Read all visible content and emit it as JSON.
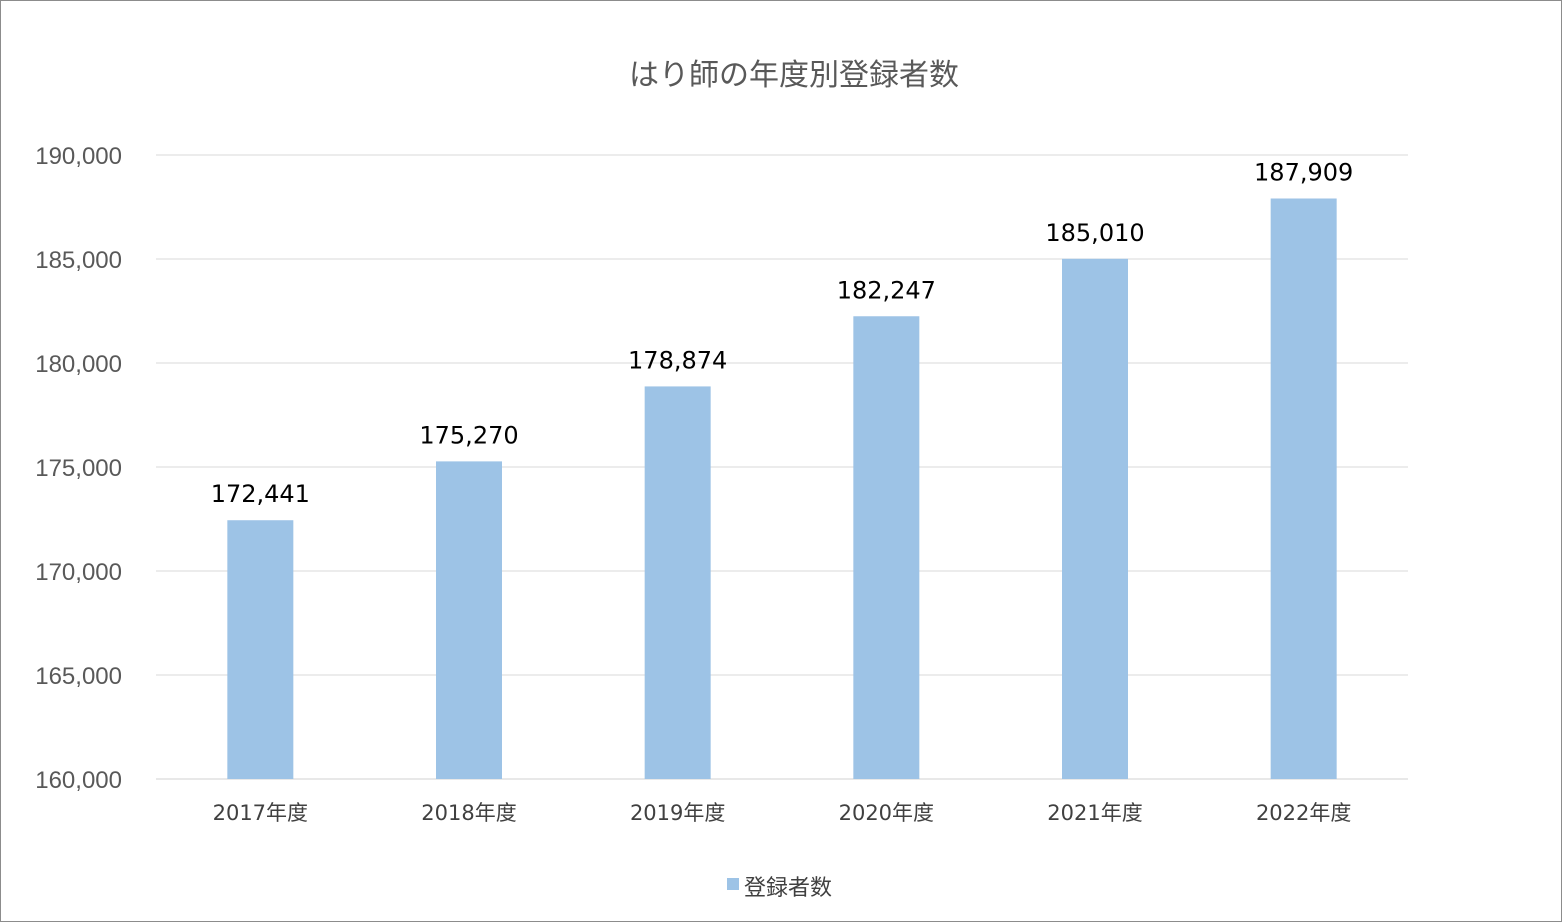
{
  "chart_data": {
    "type": "bar",
    "title": "はり師の年度別登録者数",
    "categories": [
      "2017年度",
      "2018年度",
      "2019年度",
      "2020年度",
      "2021年度",
      "2022年度"
    ],
    "series": [
      {
        "name": "登録者数",
        "values": [
          172441,
          175270,
          178874,
          182247,
          185010,
          187909
        ],
        "color": "#9dc3e6"
      }
    ],
    "data_labels": [
      "172,441",
      "175,270",
      "178,874",
      "182,247",
      "185,010",
      "187,909"
    ],
    "ylim": [
      160000,
      190000
    ],
    "yticks": [
      160000,
      165000,
      170000,
      175000,
      180000,
      185000,
      190000
    ],
    "ytick_labels": [
      "160,000",
      "165,000",
      "170,000",
      "175,000",
      "180,000",
      "185,000",
      "190,000"
    ],
    "xlabel": "",
    "ylabel": "",
    "grid": true,
    "legend_position": "bottom"
  }
}
